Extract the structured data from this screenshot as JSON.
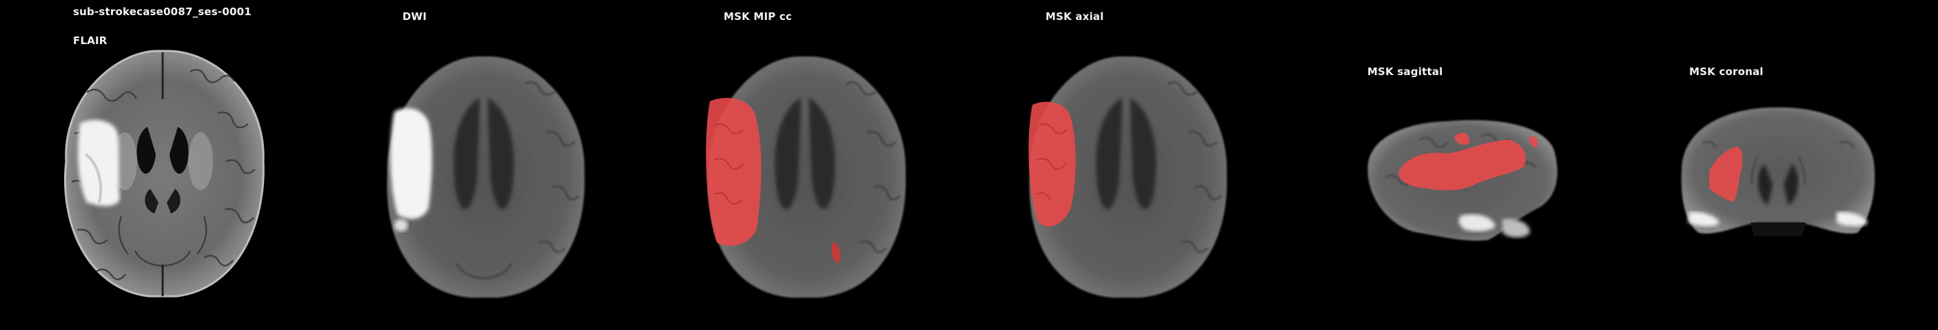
{
  "subject_title": "sub-strokecase0087_ses-0001",
  "panels": [
    {
      "key": "flair",
      "title": "FLAIR"
    },
    {
      "key": "dwi",
      "title": "DWI"
    },
    {
      "key": "mip",
      "title": "MSK MIP cc"
    },
    {
      "key": "axial",
      "title": "MSK axial"
    },
    {
      "key": "sagittal",
      "title": "MSK sagittal"
    },
    {
      "key": "coronal",
      "title": "MSK coronal"
    }
  ],
  "colors": {
    "background": "#000000",
    "mask_overlay": "#e84a4a",
    "dwi_hyperintensity": "#f4f4f4"
  }
}
